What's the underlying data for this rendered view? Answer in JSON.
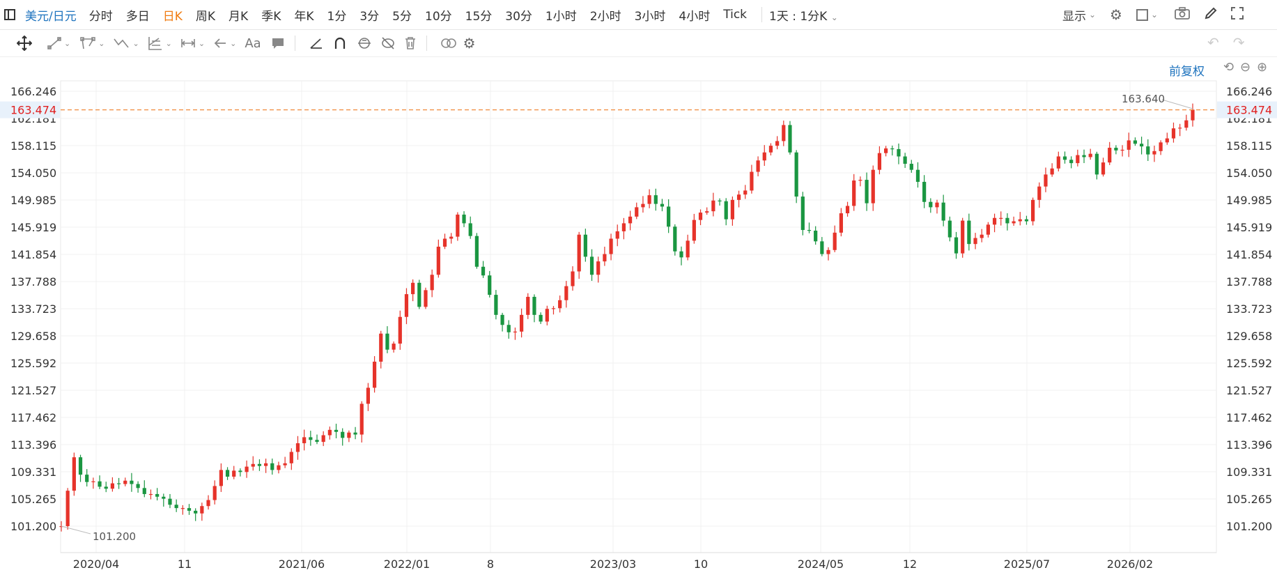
{
  "toolbar": {
    "symbol": "美元/日元",
    "periods": [
      "分时",
      "多日",
      "日K",
      "周K",
      "月K",
      "季K",
      "年K",
      "1分",
      "3分",
      "5分",
      "10分",
      "15分",
      "30分",
      "1小时",
      "2小时",
      "3小时",
      "4小时",
      "Tick"
    ],
    "active_period": "日K",
    "interval_select": "1天 : 1分K",
    "display_label": "显示"
  },
  "adjust_label": "前复权",
  "current_price_label": "163.474",
  "max_annotation": "163.640",
  "min_annotation": "101.200",
  "colors": {
    "up": "#e6332a",
    "down": "#1a9641",
    "price_line": "#f08a3c",
    "accent": "#1e73be",
    "active": "#f07b10"
  },
  "chart_data": {
    "type": "candlestick",
    "title": "",
    "xlabel": "",
    "ylabel": "",
    "ylim": [
      99.8,
      167.6
    ],
    "y_ticks": [
      "166.246",
      "162.181",
      "158.115",
      "154.050",
      "149.985",
      "145.919",
      "141.854",
      "137.788",
      "133.723",
      "129.658",
      "125.592",
      "121.527",
      "117.462",
      "113.396",
      "109.331",
      "105.265",
      "101.200"
    ],
    "x_ticks": [
      "2020/04",
      "11",
      "2021/06",
      "2022/01",
      "8",
      "2023/03",
      "10",
      "2024/05",
      "12",
      "2025/07",
      "2026/02"
    ],
    "current_price": 163.474,
    "max": 163.64,
    "min": 101.2,
    "series": [
      {
        "values": [
          [
            0,
            101.2
          ],
          [
            1,
            106.5
          ],
          [
            2,
            111.5
          ],
          [
            3,
            108.9
          ],
          [
            4,
            107.8
          ],
          [
            5,
            107.9
          ],
          [
            6,
            107.1
          ],
          [
            7,
            106.8
          ],
          [
            8,
            107.6
          ],
          [
            9,
            107.5
          ],
          [
            10,
            108.0
          ],
          [
            11,
            107.5
          ],
          [
            12,
            106.9
          ],
          [
            13,
            106.0
          ],
          [
            14,
            106.0
          ],
          [
            15,
            105.6
          ],
          [
            16,
            105.3
          ],
          [
            17,
            104.4
          ],
          [
            18,
            103.9
          ],
          [
            19,
            103.9
          ],
          [
            20,
            103.5
          ],
          [
            21,
            103.1
          ],
          [
            22,
            104.2
          ],
          [
            23,
            105.1
          ],
          [
            24,
            107.2
          ],
          [
            25,
            109.6
          ],
          [
            26,
            108.6
          ],
          [
            27,
            109.5
          ],
          [
            28,
            109.3
          ],
          [
            29,
            110.1
          ],
          [
            30,
            110.5
          ],
          [
            31,
            110.2
          ],
          [
            32,
            110.6
          ],
          [
            33,
            109.6
          ],
          [
            34,
            110.3
          ],
          [
            35,
            110.6
          ],
          [
            36,
            112.3
          ],
          [
            37,
            113.6
          ],
          [
            38,
            114.5
          ],
          [
            39,
            114.1
          ],
          [
            40,
            113.8
          ],
          [
            41,
            114.8
          ],
          [
            42,
            115.6
          ],
          [
            43,
            115.3
          ],
          [
            44,
            114.4
          ],
          [
            45,
            115.2
          ],
          [
            46,
            114.9
          ],
          [
            47,
            119.5
          ],
          [
            48,
            121.9
          ],
          [
            49,
            125.8
          ],
          [
            50,
            130.0
          ],
          [
            51,
            127.6
          ],
          [
            52,
            128.5
          ],
          [
            53,
            132.5
          ],
          [
            54,
            135.9
          ],
          [
            55,
            137.6
          ],
          [
            56,
            134.0
          ],
          [
            57,
            136.5
          ],
          [
            58,
            138.8
          ],
          [
            59,
            143.0
          ],
          [
            60,
            144.2
          ],
          [
            61,
            144.5
          ],
          [
            62,
            147.8
          ],
          [
            63,
            146.5
          ],
          [
            64,
            144.6
          ],
          [
            65,
            140.0
          ],
          [
            66,
            138.7
          ],
          [
            67,
            135.8
          ],
          [
            68,
            132.8
          ],
          [
            69,
            131.3
          ],
          [
            70,
            130.2
          ],
          [
            71,
            130.3
          ],
          [
            72,
            132.8
          ],
          [
            73,
            135.5
          ],
          [
            74,
            132.8
          ],
          [
            75,
            131.8
          ],
          [
            76,
            133.7
          ],
          [
            77,
            133.8
          ],
          [
            78,
            135.0
          ],
          [
            79,
            137.1
          ],
          [
            80,
            139.3
          ],
          [
            81,
            144.8
          ],
          [
            82,
            141.5
          ],
          [
            83,
            138.8
          ],
          [
            84,
            140.8
          ],
          [
            85,
            141.9
          ],
          [
            86,
            144.2
          ],
          [
            87,
            145.3
          ],
          [
            88,
            146.5
          ],
          [
            89,
            147.5
          ],
          [
            90,
            148.9
          ],
          [
            91,
            149.4
          ],
          [
            92,
            150.7
          ],
          [
            93,
            149.4
          ],
          [
            94,
            149.0
          ],
          [
            95,
            146.0
          ],
          [
            96,
            142.3
          ],
          [
            97,
            141.4
          ],
          [
            98,
            143.9
          ],
          [
            99,
            147.0
          ],
          [
            100,
            148.1
          ],
          [
            101,
            148.3
          ],
          [
            102,
            149.9
          ],
          [
            103,
            149.8
          ],
          [
            104,
            147.1
          ],
          [
            105,
            150.0
          ],
          [
            106,
            150.8
          ],
          [
            107,
            151.4
          ],
          [
            108,
            154.2
          ],
          [
            109,
            155.9
          ],
          [
            110,
            157.1
          ],
          [
            111,
            158.1
          ],
          [
            112,
            158.8
          ],
          [
            113,
            161.2
          ],
          [
            114,
            157.1
          ],
          [
            115,
            150.5
          ],
          [
            116,
            145.5
          ],
          [
            117,
            145.4
          ],
          [
            118,
            143.8
          ],
          [
            119,
            141.9
          ],
          [
            120,
            142.5
          ],
          [
            121,
            145.1
          ],
          [
            122,
            148.0
          ],
          [
            123,
            149.1
          ],
          [
            124,
            152.9
          ],
          [
            125,
            153.0
          ],
          [
            126,
            149.5
          ],
          [
            127,
            154.5
          ],
          [
            128,
            157.0
          ],
          [
            129,
            157.7
          ],
          [
            130,
            157.6
          ],
          [
            131,
            156.5
          ],
          [
            132,
            155.4
          ],
          [
            133,
            154.5
          ],
          [
            134,
            152.7
          ],
          [
            135,
            149.7
          ],
          [
            136,
            148.9
          ],
          [
            137,
            149.6
          ],
          [
            138,
            146.9
          ],
          [
            139,
            144.4
          ],
          [
            140,
            142.0
          ],
          [
            141,
            146.9
          ],
          [
            142,
            143.4
          ],
          [
            143,
            144.3
          ],
          [
            144,
            144.8
          ],
          [
            145,
            146.3
          ],
          [
            146,
            147.3
          ],
          [
            147,
            147.3
          ],
          [
            148,
            146.5
          ],
          [
            149,
            146.8
          ],
          [
            150,
            147.1
          ],
          [
            151,
            146.8
          ],
          [
            152,
            150.0
          ],
          [
            153,
            152.0
          ],
          [
            154,
            153.8
          ],
          [
            155,
            154.7
          ],
          [
            156,
            156.5
          ],
          [
            157,
            156.0
          ],
          [
            158,
            155.5
          ],
          [
            159,
            156.7
          ],
          [
            160,
            156.4
          ],
          [
            161,
            156.9
          ],
          [
            162,
            153.8
          ],
          [
            163,
            155.6
          ],
          [
            164,
            157.8
          ],
          [
            165,
            157.4
          ],
          [
            166,
            157.5
          ],
          [
            167,
            158.9
          ],
          [
            168,
            158.4
          ],
          [
            169,
            158.0
          ],
          [
            170,
            156.8
          ],
          [
            171,
            157.3
          ],
          [
            172,
            158.6
          ],
          [
            173,
            159.2
          ],
          [
            174,
            160.7
          ],
          [
            175,
            160.8
          ],
          [
            176,
            161.9
          ],
          [
            177,
            163.5
          ]
        ]
      }
    ]
  }
}
